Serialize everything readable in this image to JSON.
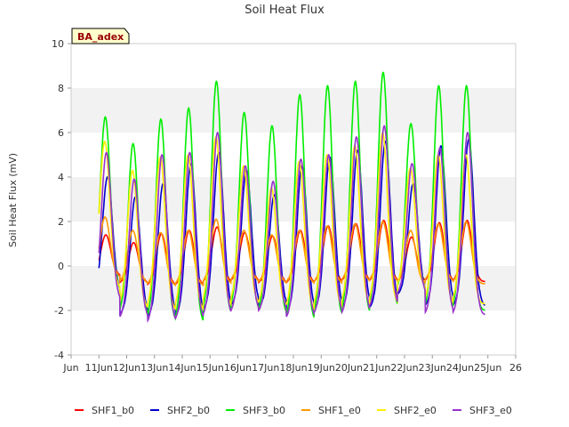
{
  "chart_data": {
    "type": "line",
    "title": "Soil Heat Flux",
    "xlabel": "",
    "ylabel": "Soil Heat Flux (mV)",
    "site_tag": "BA_adex",
    "ylim": [
      -4,
      10
    ],
    "xlim": [
      10,
      26
    ],
    "y_ticks": [
      -4,
      -2,
      0,
      2,
      4,
      6,
      8,
      10
    ],
    "x_ticks": [
      10,
      11,
      12,
      13,
      14,
      15,
      16,
      17,
      18,
      19,
      20,
      21,
      22,
      23,
      24,
      25,
      26
    ],
    "x_tick_labels": [
      "Jun 11",
      "Jun 11",
      "12Jun 12",
      "13Jun 13",
      "14Jun 14",
      "15Jun 15",
      "16Jun 16",
      "17Jun 17",
      "18Jun 18",
      "19Jun 19",
      "20Jun 20",
      "21Jun 21",
      "22Jun 22",
      "23Jun 23",
      "24Jun 24",
      "25Jun 25",
      "Jun 26"
    ],
    "x_tick_display": [
      "Jun 11",
      "",
      "12Jun 13",
      "",
      "14Jun 15",
      "",
      "16Jun 17",
      "",
      "18Jun 19",
      "",
      "20Jun 21",
      "",
      "22Jun 23",
      "",
      "24Jun 25",
      "",
      "Jun 26"
    ],
    "grid": true,
    "legend_position": "bottom",
    "colors": {
      "plot_bg": "#ffffff",
      "band": "#f2f2f2",
      "axis": "#cccccc",
      "site_tag_bg": "#ffffcc"
    },
    "series": [
      {
        "name": "SHF1_b0",
        "color": "#ff0000",
        "amp": [
          1.4,
          1.05,
          1.45,
          1.6,
          1.75,
          1.5,
          1.35,
          1.6,
          1.8,
          1.9,
          2.05,
          1.3,
          1.95,
          2.05
        ],
        "trough": [
          -0.45,
          -0.8,
          -0.9,
          -0.9,
          -0.75,
          -0.7,
          -0.8,
          -0.8,
          -0.75,
          -0.7,
          -0.7,
          -0.7,
          -0.7,
          -0.7
        ],
        "lag": 0.0
      },
      {
        "name": "SHF2_b0",
        "color": "#0000cc",
        "amp": [
          4.0,
          3.1,
          3.7,
          4.6,
          5.1,
          4.3,
          3.2,
          4.5,
          4.9,
          5.2,
          5.6,
          3.7,
          5.4,
          5.7
        ],
        "trough": [
          -1.3,
          -2.2,
          -2.3,
          -2.3,
          -2.0,
          -1.8,
          -1.9,
          -2.1,
          -2.0,
          -1.9,
          -1.9,
          -1.3,
          -1.8,
          -1.8
        ],
        "lag": 0.06
      },
      {
        "name": "SHF3_b0",
        "color": "#00ee00",
        "amp": [
          6.7,
          5.5,
          6.6,
          7.1,
          8.3,
          6.9,
          6.3,
          7.7,
          8.1,
          8.3,
          8.7,
          6.4,
          8.1,
          8.1
        ],
        "trough": [
          -1.1,
          -2.2,
          -2.5,
          -2.6,
          -2.2,
          -2.0,
          -2.2,
          -2.5,
          -2.3,
          -2.2,
          -1.9,
          -1.1,
          -2.0,
          -2.0
        ],
        "lag": -0.02
      },
      {
        "name": "SHF1_e0",
        "color": "#ff9900",
        "amp": [
          2.2,
          1.6,
          1.5,
          1.6,
          2.1,
          1.6,
          1.4,
          1.6,
          1.8,
          1.9,
          2.0,
          1.6,
          1.9,
          2.0
        ],
        "trough": [
          -0.5,
          -0.8,
          -0.9,
          -0.9,
          -0.8,
          -0.7,
          -0.8,
          -0.8,
          -0.8,
          -0.7,
          -0.7,
          -0.8,
          -0.7,
          -0.8
        ],
        "lag": -0.03
      },
      {
        "name": "SHF2_e0",
        "color": "#ffee00",
        "amp": [
          5.6,
          4.3,
          4.9,
          5.0,
          5.8,
          4.5,
          3.5,
          4.7,
          5.0,
          5.4,
          6.0,
          4.4,
          5.0,
          5.0
        ],
        "trough": [
          -1.0,
          -1.9,
          -2.0,
          -2.0,
          -1.8,
          -1.7,
          -1.8,
          -2.0,
          -1.9,
          -1.8,
          -1.7,
          -1.0,
          -1.7,
          -1.7
        ],
        "lag": -0.04
      },
      {
        "name": "SHF3_e0",
        "color": "#9933cc",
        "amp": [
          5.1,
          3.9,
          5.0,
          5.1,
          6.0,
          4.5,
          3.8,
          4.8,
          5.0,
          5.8,
          6.3,
          4.6,
          5.3,
          6.0
        ],
        "trough": [
          -1.6,
          -2.4,
          -2.6,
          -2.5,
          -2.3,
          -2.1,
          -2.1,
          -2.4,
          -2.2,
          -2.2,
          -1.9,
          -1.3,
          -2.2,
          -2.2
        ],
        "lag": 0.02
      }
    ],
    "day_peaks": [
      11.25,
      12.25,
      13.25,
      14.25,
      15.25,
      16.25,
      17.25,
      18.25,
      19.25,
      20.25,
      21.25,
      22.25,
      23.25,
      24.25
    ],
    "x_start": 11.0,
    "x_end": 24.9
  }
}
